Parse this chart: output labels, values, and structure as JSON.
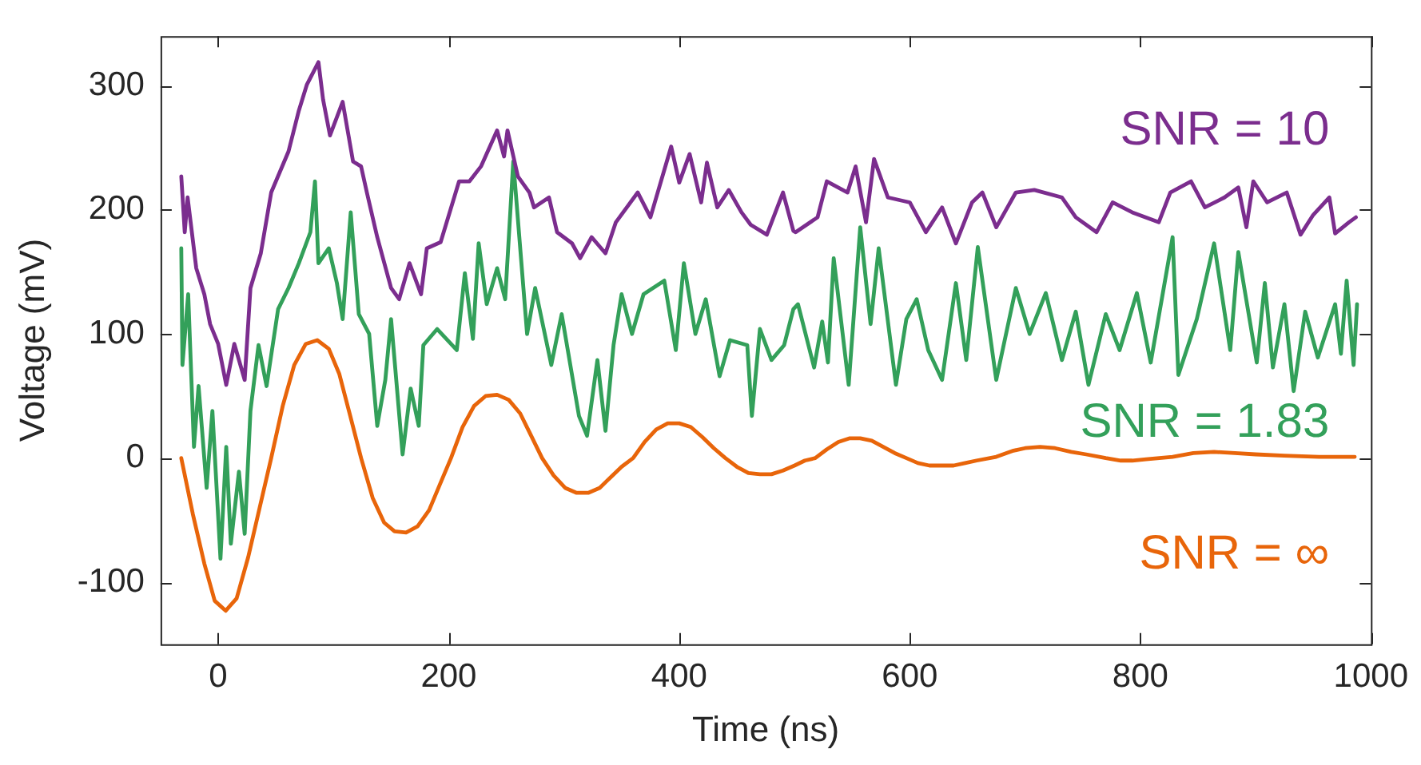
{
  "chart_data": {
    "type": "line",
    "xlabel": "Time (ns)",
    "ylabel": "Voltage (mV)",
    "xlim": [
      -50,
      1000
    ],
    "ylim": [
      -150,
      340
    ],
    "xticks": [
      0,
      200,
      400,
      600,
      800,
      1000
    ],
    "yticks": [
      -100,
      0,
      100,
      200,
      300
    ],
    "grid": false,
    "legend": false,
    "marker": "none",
    "line_style": "solid",
    "series": [
      {
        "name": "SNR = 10",
        "color": "#7b2d8e",
        "x": [
          -32,
          -29,
          -26.5,
          -19,
          -12,
          -7,
          0,
          7,
          14,
          23,
          28,
          37,
          46,
          61,
          70,
          77,
          87,
          91,
          97,
          108,
          117,
          124,
          129,
          138,
          150,
          157,
          166,
          176,
          181,
          193,
          209,
          218,
          228,
          242,
          248,
          251,
          260,
          270,
          274,
          287,
          294,
          307,
          314,
          324,
          336,
          345,
          364,
          375,
          393,
          400,
          409,
          419,
          424,
          433,
          443,
          454,
          462,
          476,
          490,
          499,
          501,
          520,
          528,
          546,
          553,
          562,
          569,
          581,
          600,
          614,
          628,
          640,
          654,
          663,
          675,
          692,
          708,
          732,
          744,
          762,
          776,
          793,
          816,
          826,
          844,
          856,
          873,
          885,
          892,
          898,
          910,
          927,
          939,
          950,
          964,
          969,
          981,
          987
        ],
        "values": [
          227,
          182,
          210,
          153,
          132,
          108,
          92,
          59,
          92,
          63,
          137,
          165,
          214,
          247,
          280,
          301,
          319,
          289,
          260,
          287,
          239,
          235,
          214,
          178,
          137,
          128,
          157,
          132,
          169,
          174,
          223,
          223,
          235,
          264,
          243,
          264,
          227,
          214,
          202,
          210,
          182,
          173,
          161,
          178,
          165,
          190,
          214,
          194,
          251,
          222,
          245,
          206,
          238,
          202,
          216,
          198,
          188,
          180,
          214,
          183,
          182,
          194,
          223,
          214,
          235,
          190,
          241,
          210,
          206,
          182,
          202,
          173,
          206,
          214,
          186,
          214,
          216,
          210,
          194,
          182,
          206,
          198,
          190,
          214,
          223,
          202,
          210,
          218,
          186,
          223,
          206,
          214,
          180,
          196,
          210,
          181,
          190,
          194
        ]
      },
      {
        "name": "SNR = 1.83",
        "color": "#33a05a",
        "x": [
          -32,
          -31,
          -26,
          -21,
          -17,
          -10,
          -5,
          2,
          7,
          11,
          18,
          23,
          28,
          35,
          42,
          52,
          61,
          70,
          80,
          84,
          87,
          96,
          103,
          108,
          115,
          122,
          131,
          138,
          145,
          150,
          160,
          167,
          174,
          178,
          190,
          207,
          214,
          221,
          226,
          233,
          242,
          249,
          256,
          268,
          275,
          289,
          298,
          313,
          320,
          329,
          336,
          343,
          350,
          359,
          369,
          387,
          397,
          404,
          414,
          423,
          435,
          444,
          459,
          463,
          470,
          480,
          491,
          499,
          503,
          517,
          524,
          529,
          534,
          547,
          557,
          566,
          573,
          588,
          597,
          606,
          616,
          628,
          640,
          649,
          659,
          675,
          692,
          704,
          718,
          732,
          744,
          755,
          770,
          782,
          797,
          809,
          828,
          833,
          849,
          864,
          878,
          885,
          901,
          908,
          915,
          925,
          933,
          943,
          954,
          969,
          974,
          979,
          985,
          988
        ],
        "values": [
          169,
          75,
          132,
          9,
          58,
          -24,
          38,
          -81,
          9,
          -69,
          -11,
          -61,
          38,
          91,
          58,
          120,
          137,
          157,
          182,
          223,
          157,
          169,
          141,
          112,
          198,
          116,
          100,
          26,
          63,
          112,
          3,
          56,
          26,
          91,
          104,
          87,
          149,
          96,
          173,
          124,
          153,
          128,
          239,
          100,
          137,
          75,
          116,
          34,
          18,
          79,
          22,
          91,
          132,
          100,
          132,
          143,
          87,
          157,
          100,
          128,
          66,
          95,
          91,
          34,
          104,
          79,
          91,
          120,
          124,
          73,
          110,
          77,
          161,
          59,
          186,
          108,
          169,
          59,
          112,
          128,
          87,
          63,
          141,
          79,
          170,
          63,
          137,
          100,
          133,
          79,
          118,
          59,
          116,
          87,
          133,
          77,
          178,
          67,
          112,
          173,
          87,
          166,
          77,
          141,
          73,
          124,
          54,
          118,
          81,
          124,
          84,
          143,
          75,
          124
        ]
      },
      {
        "name": "SNR = ∞",
        "color": "#e8650a",
        "x": [
          -32,
          -22,
          -12,
          -3,
          6.5,
          16,
          26,
          36,
          46,
          56,
          66,
          76,
          86,
          96,
          105,
          114,
          124,
          134,
          144,
          153,
          163,
          173,
          183,
          192,
          202,
          212,
          222,
          232,
          242,
          252,
          262,
          271,
          281,
          291,
          301,
          311,
          321,
          331,
          341,
          350,
          360,
          370,
          380,
          390,
          400,
          410,
          420,
          430,
          440,
          450,
          460,
          470,
          480,
          490,
          500,
          509,
          518,
          528,
          538,
          548,
          557,
          567,
          577,
          587,
          597,
          607,
          617,
          628,
          638,
          648,
          658,
          675,
          690,
          700,
          713,
          726,
          740,
          753,
          770,
          783,
          793,
          805,
          828,
          846,
          864,
          882,
          900,
          925,
          955,
          986
        ],
        "values": [
          0,
          -45,
          -85,
          -115,
          -123,
          -113,
          -80,
          -40,
          0,
          42,
          75,
          92,
          95,
          88,
          68,
          36,
          0,
          -32,
          -52,
          -59,
          -60,
          -55,
          -42,
          -22,
          0,
          25,
          42,
          50,
          51,
          47,
          36,
          19,
          0,
          -14,
          -24,
          -28,
          -28,
          -24,
          -15,
          -7,
          0,
          13,
          23,
          28,
          28,
          25,
          17,
          8,
          0,
          -7,
          -12,
          -13,
          -13,
          -10,
          -6,
          -2,
          0,
          7,
          13,
          16,
          16,
          14,
          9,
          4,
          0,
          -4,
          -6,
          -6,
          -6,
          -4,
          -2,
          1,
          6,
          8,
          9,
          8,
          5,
          3,
          0,
          -2,
          -2,
          -1,
          1,
          4,
          5,
          4,
          3,
          2,
          1,
          1
        ]
      }
    ]
  }
}
